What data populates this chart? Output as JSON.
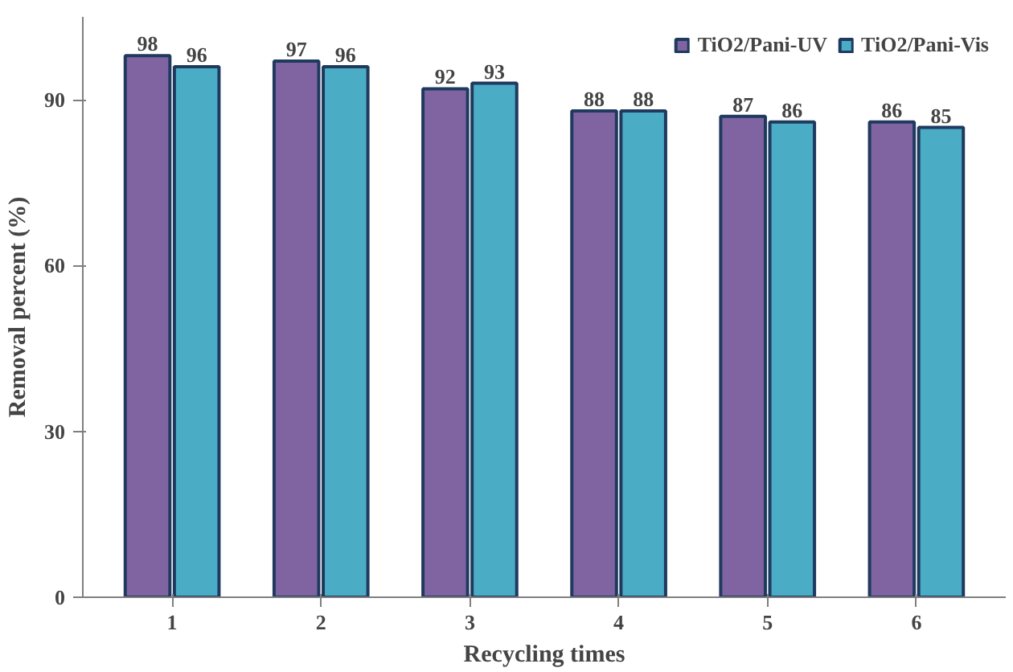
{
  "chart_data": {
    "type": "bar",
    "xlabel": "Recycling times",
    "ylabel": "Removal percent (%)",
    "categories": [
      "1",
      "2",
      "3",
      "4",
      "5",
      "6"
    ],
    "series": [
      {
        "name": "TiO2/Pani-UV",
        "color": "#8064a2",
        "values": [
          98,
          97,
          92,
          88,
          87,
          86
        ]
      },
      {
        "name": "TiO2/Pani-Vis",
        "color": "#4bacc6",
        "values": [
          96,
          96,
          93,
          88,
          86,
          85
        ]
      }
    ],
    "ylim": [
      0,
      105
    ],
    "yticks": [
      0,
      30,
      60,
      90
    ],
    "data_labels": true,
    "legend": "top right",
    "grid": false
  }
}
